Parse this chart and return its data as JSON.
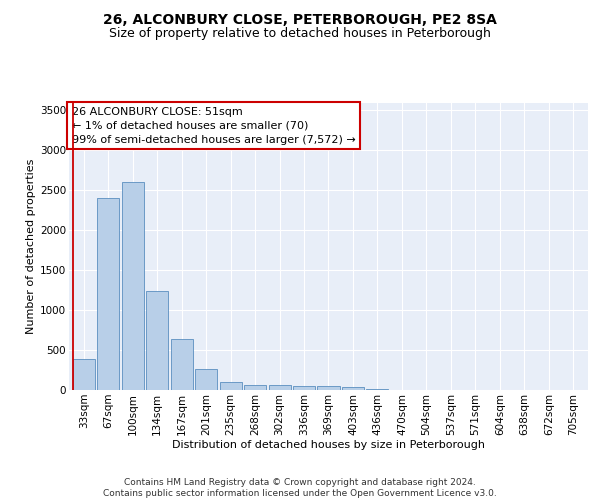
{
  "title_line1": "26, ALCONBURY CLOSE, PETERBOROUGH, PE2 8SA",
  "title_line2": "Size of property relative to detached houses in Peterborough",
  "xlabel": "Distribution of detached houses by size in Peterborough",
  "ylabel": "Number of detached properties",
  "footer_line1": "Contains HM Land Registry data © Crown copyright and database right 2024.",
  "footer_line2": "Contains public sector information licensed under the Open Government Licence v3.0.",
  "annotation_line1": "26 ALCONBURY CLOSE: 51sqm",
  "annotation_line2": "← 1% of detached houses are smaller (70)",
  "annotation_line3": "99% of semi-detached houses are larger (7,572) →",
  "bar_color": "#b8cfe8",
  "bar_edge_color": "#5a8fc0",
  "highlight_line_color": "#cc0000",
  "categories": [
    "33sqm",
    "67sqm",
    "100sqm",
    "134sqm",
    "167sqm",
    "201sqm",
    "235sqm",
    "268sqm",
    "302sqm",
    "336sqm",
    "369sqm",
    "403sqm",
    "436sqm",
    "470sqm",
    "504sqm",
    "537sqm",
    "571sqm",
    "604sqm",
    "638sqm",
    "672sqm",
    "705sqm"
  ],
  "values": [
    390,
    2400,
    2600,
    1240,
    640,
    260,
    100,
    65,
    60,
    50,
    45,
    40,
    15,
    0,
    0,
    0,
    0,
    0,
    0,
    0,
    0
  ],
  "ylim": [
    0,
    3600
  ],
  "yticks": [
    0,
    500,
    1000,
    1500,
    2000,
    2500,
    3000,
    3500
  ],
  "background_color": "#e8eef8",
  "grid_color": "#ffffff",
  "annotation_box_color": "#ffffff",
  "annotation_box_edge": "#cc0000",
  "title_fontsize": 10,
  "subtitle_fontsize": 9,
  "axis_label_fontsize": 8,
  "tick_fontsize": 7.5,
  "annotation_fontsize": 8,
  "footer_fontsize": 6.5
}
